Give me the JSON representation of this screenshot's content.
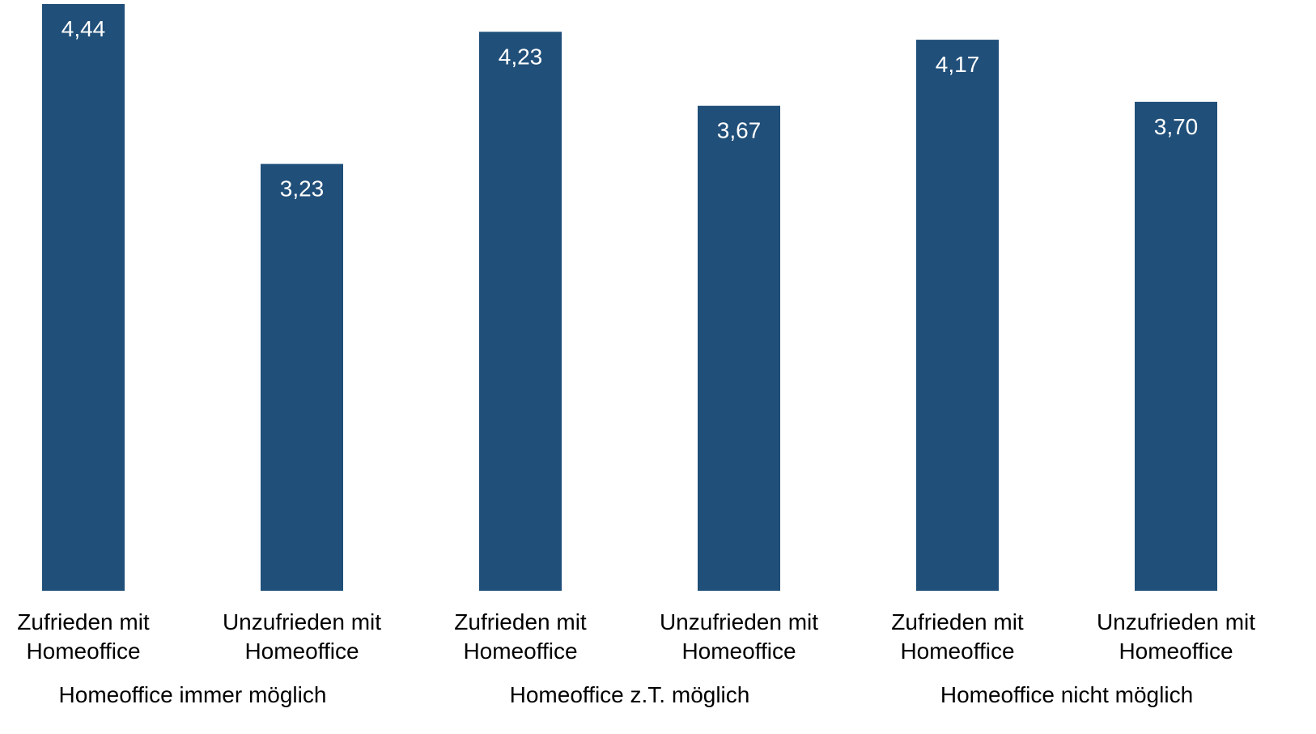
{
  "chart_data": {
    "type": "bar",
    "title": "",
    "xlabel": "",
    "ylabel": "",
    "ylim": [
      0,
      4.44
    ],
    "grid": false,
    "legend": "none",
    "bar_color": "#204f79",
    "categories": [
      [
        "Zufrieden mit",
        "Homeoffice"
      ],
      [
        "Unzufrieden mit",
        "Homeoffice"
      ],
      [
        "Zufrieden mit",
        "Homeoffice"
      ],
      [
        "Unzufrieden mit",
        "Homeoffice"
      ],
      [
        "Zufrieden mit",
        "Homeoffice"
      ],
      [
        "Unzufrieden mit",
        "Homeoffice"
      ]
    ],
    "groups": [
      "Homeoffice immer möglich",
      "Homeoffice z.T. möglich",
      "Homeoffice nicht möglich"
    ],
    "values": [
      4.44,
      3.23,
      4.23,
      3.67,
      4.17,
      3.7
    ],
    "data_labels": [
      "4,44",
      "3,23",
      "4,23",
      "3,67",
      "4,17",
      "3,70"
    ]
  }
}
